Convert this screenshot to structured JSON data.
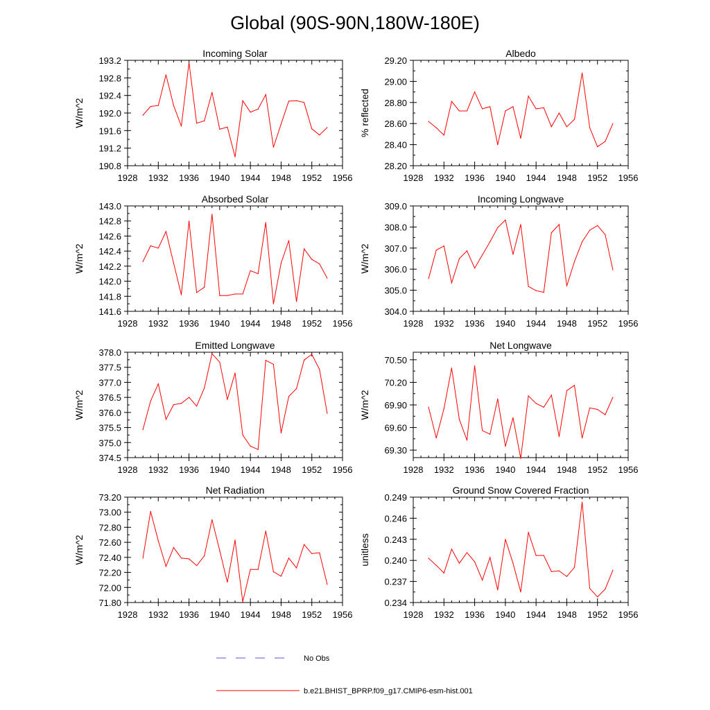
{
  "figure": {
    "title": "Global (90S-90N,180W-180E)",
    "legend": {
      "entries": [
        {
          "label": "No Obs",
          "color": "#5555cc",
          "style": "dashed"
        },
        {
          "label": "b.e21.BHIST_BPRP.f09_g17.CMIP6-esm-hist.001",
          "color": "#ff0000",
          "style": "solid"
        }
      ]
    }
  },
  "chart_data": [
    {
      "type": "line",
      "title": "Incoming Solar",
      "xlabel": "",
      "ylabel": "W/m^2",
      "xlim": [
        1928,
        1956
      ],
      "ylim": [
        190.8,
        193.2
      ],
      "xticks": [
        1928,
        1932,
        1936,
        1940,
        1944,
        1948,
        1952,
        1956
      ],
      "yticks": [
        "190.8",
        "191.2",
        "191.6",
        "192.0",
        "192.4",
        "192.8",
        "193.2"
      ],
      "color": "#ff0000",
      "series": [
        {
          "name": "b.e21.BHIST_BPRP.f09_g17.CMIP6-esm-hist.001",
          "x": [
            1930,
            1931,
            1932,
            1933,
            1934,
            1935,
            1936,
            1937,
            1938,
            1939,
            1940,
            1941,
            1942,
            1943,
            1944,
            1945,
            1946,
            1947,
            1948,
            1949,
            1950,
            1951,
            1952,
            1953,
            1954
          ],
          "values": [
            191.95,
            192.15,
            192.17,
            192.87,
            192.17,
            191.7,
            193.15,
            191.77,
            191.82,
            192.47,
            191.63,
            191.68,
            191.0,
            192.28,
            192.02,
            192.09,
            192.42,
            191.22,
            191.75,
            192.27,
            192.28,
            192.24,
            191.64,
            191.5,
            191.67
          ]
        }
      ]
    },
    {
      "type": "line",
      "title": "Albedo",
      "xlabel": "",
      "ylabel": "% reflected",
      "xlim": [
        1928,
        1956
      ],
      "ylim": [
        28.2,
        29.2
      ],
      "xticks": [
        1928,
        1932,
        1936,
        1940,
        1944,
        1948,
        1952,
        1956
      ],
      "yticks": [
        "28.20",
        "28.40",
        "28.60",
        "28.80",
        "29.00",
        "29.20"
      ],
      "color": "#ff0000",
      "series": [
        {
          "name": "b.e21.BHIST_BPRP.f09_g17.CMIP6-esm-hist.001",
          "x": [
            1930,
            1931,
            1932,
            1933,
            1934,
            1935,
            1936,
            1937,
            1938,
            1939,
            1940,
            1941,
            1942,
            1943,
            1944,
            1945,
            1946,
            1947,
            1948,
            1949,
            1950,
            1951,
            1952,
            1953,
            1954
          ],
          "values": [
            28.62,
            28.56,
            28.49,
            28.81,
            28.72,
            28.72,
            28.9,
            28.74,
            28.76,
            28.4,
            28.72,
            28.76,
            28.46,
            28.86,
            28.74,
            28.75,
            28.57,
            28.7,
            28.57,
            28.64,
            29.08,
            28.56,
            28.38,
            28.43,
            28.6
          ]
        }
      ]
    },
    {
      "type": "line",
      "title": "Absorbed Solar",
      "xlabel": "",
      "ylabel": "W/m^2",
      "xlim": [
        1928,
        1956
      ],
      "ylim": [
        141.6,
        143.0
      ],
      "xticks": [
        1928,
        1932,
        1936,
        1940,
        1944,
        1948,
        1952,
        1956
      ],
      "yticks": [
        "141.6",
        "141.8",
        "142.0",
        "142.2",
        "142.4",
        "142.6",
        "142.8",
        "143.0"
      ],
      "color": "#ff0000",
      "series": [
        {
          "name": "b.e21.BHIST_BPRP.f09_g17.CMIP6-esm-hist.001",
          "x": [
            1930,
            1931,
            1932,
            1933,
            1934,
            1935,
            1936,
            1937,
            1938,
            1939,
            1940,
            1941,
            1942,
            1943,
            1944,
            1945,
            1946,
            1947,
            1948,
            1949,
            1950,
            1951,
            1952,
            1953,
            1954
          ],
          "values": [
            142.26,
            142.47,
            142.44,
            142.66,
            142.24,
            141.82,
            142.8,
            141.85,
            141.92,
            142.89,
            141.81,
            141.81,
            141.83,
            141.83,
            142.14,
            142.1,
            142.78,
            141.7,
            142.24,
            142.54,
            141.73,
            142.43,
            142.29,
            142.23,
            142.04
          ]
        }
      ]
    },
    {
      "type": "line",
      "title": "Incoming Longwave",
      "xlabel": "",
      "ylabel": "W/m^2",
      "xlim": [
        1928,
        1956
      ],
      "ylim": [
        304.0,
        309.0
      ],
      "xticks": [
        1928,
        1932,
        1936,
        1940,
        1944,
        1948,
        1952,
        1956
      ],
      "yticks": [
        "304.0",
        "305.0",
        "306.0",
        "307.0",
        "308.0",
        "309.0"
      ],
      "color": "#ff0000",
      "series": [
        {
          "name": "b.e21.BHIST_BPRP.f09_g17.CMIP6-esm-hist.001",
          "x": [
            1930,
            1931,
            1932,
            1933,
            1934,
            1935,
            1936,
            1937,
            1938,
            1939,
            1940,
            1941,
            1942,
            1943,
            1944,
            1945,
            1946,
            1947,
            1948,
            1949,
            1950,
            1951,
            1952,
            1953,
            1954
          ],
          "values": [
            305.55,
            306.9,
            307.1,
            305.35,
            306.5,
            306.87,
            306.05,
            306.67,
            307.3,
            307.97,
            308.33,
            306.7,
            308.12,
            305.18,
            304.98,
            304.9,
            307.73,
            308.12,
            305.2,
            306.36,
            307.3,
            307.85,
            308.07,
            307.64,
            305.97
          ]
        }
      ]
    },
    {
      "type": "line",
      "title": "Emitted Longwave",
      "xlabel": "",
      "ylabel": "W/m^2",
      "xlim": [
        1928,
        1956
      ],
      "ylim": [
        374.5,
        378.0
      ],
      "xticks": [
        1928,
        1932,
        1936,
        1940,
        1944,
        1948,
        1952,
        1956
      ],
      "yticks": [
        "374.5",
        "375.0",
        "375.5",
        "376.0",
        "376.5",
        "377.0",
        "377.5",
        "378.0"
      ],
      "color": "#ff0000",
      "series": [
        {
          "name": "b.e21.BHIST_BPRP.f09_g17.CMIP6-esm-hist.001",
          "x": [
            1930,
            1931,
            1932,
            1933,
            1934,
            1935,
            1936,
            1937,
            1938,
            1939,
            1940,
            1941,
            1942,
            1943,
            1944,
            1945,
            1946,
            1947,
            1948,
            1949,
            1950,
            1951,
            1952,
            1953,
            1954
          ],
          "values": [
            375.43,
            376.38,
            376.95,
            375.77,
            376.26,
            376.3,
            376.5,
            376.21,
            376.81,
            377.95,
            377.67,
            376.43,
            377.31,
            375.25,
            374.88,
            374.77,
            377.73,
            377.6,
            375.32,
            376.53,
            376.79,
            377.74,
            377.93,
            377.43,
            375.97
          ]
        }
      ]
    },
    {
      "type": "line",
      "title": "Net Longwave",
      "xlabel": "",
      "ylabel": "W/m^2",
      "xlim": [
        1928,
        1956
      ],
      "ylim": [
        69.2,
        70.6
      ],
      "xticks": [
        1928,
        1932,
        1936,
        1940,
        1944,
        1948,
        1952,
        1956
      ],
      "yticks": [
        "69.30",
        "69.60",
        "69.90",
        "70.20",
        "70.50"
      ],
      "color": "#ff0000",
      "series": [
        {
          "name": "b.e21.BHIST_BPRP.f09_g17.CMIP6-esm-hist.001",
          "x": [
            1930,
            1931,
            1932,
            1933,
            1934,
            1935,
            1936,
            1937,
            1938,
            1939,
            1940,
            1941,
            1942,
            1943,
            1944,
            1945,
            1946,
            1947,
            1948,
            1949,
            1950,
            1951,
            1952,
            1953,
            1954
          ],
          "values": [
            69.87,
            69.46,
            69.85,
            70.39,
            69.71,
            69.43,
            70.42,
            69.56,
            69.51,
            69.98,
            69.35,
            69.73,
            69.19,
            70.02,
            69.92,
            69.87,
            70.03,
            69.48,
            70.09,
            70.16,
            69.46,
            69.86,
            69.84,
            69.77,
            70.0
          ]
        }
      ]
    },
    {
      "type": "line",
      "title": "Net Radiation",
      "xlabel": "",
      "ylabel": "W/m^2",
      "xlim": [
        1928,
        1956
      ],
      "ylim": [
        71.8,
        73.2
      ],
      "xticks": [
        1928,
        1932,
        1936,
        1940,
        1944,
        1948,
        1952,
        1956
      ],
      "yticks": [
        "71.80",
        "72.00",
        "72.20",
        "72.40",
        "72.60",
        "72.80",
        "73.00",
        "73.20"
      ],
      "color": "#ff0000",
      "series": [
        {
          "name": "b.e21.BHIST_BPRP.f09_g17.CMIP6-esm-hist.001",
          "x": [
            1930,
            1931,
            1932,
            1933,
            1934,
            1935,
            1936,
            1937,
            1938,
            1939,
            1940,
            1941,
            1942,
            1943,
            1944,
            1945,
            1946,
            1947,
            1948,
            1949,
            1950,
            1951,
            1952,
            1953,
            1954
          ],
          "values": [
            72.39,
            73.01,
            72.62,
            72.28,
            72.53,
            72.39,
            72.38,
            72.29,
            72.42,
            72.9,
            72.49,
            72.07,
            72.63,
            71.81,
            72.24,
            72.24,
            72.75,
            72.21,
            72.15,
            72.39,
            72.26,
            72.57,
            72.45,
            72.46,
            72.04
          ]
        }
      ]
    },
    {
      "type": "line",
      "title": "Ground Snow Covered Fraction",
      "xlabel": "",
      "ylabel": "unitless",
      "xlim": [
        1928,
        1956
      ],
      "ylim": [
        0.234,
        0.249
      ],
      "xticks": [
        1928,
        1932,
        1936,
        1940,
        1944,
        1948,
        1952,
        1956
      ],
      "yticks": [
        "0.234",
        "0.237",
        "0.240",
        "0.243",
        "0.246",
        "0.249"
      ],
      "color": "#ff0000",
      "series": [
        {
          "name": "b.e21.BHIST_BPRP.f09_g17.CMIP6-esm-hist.001",
          "x": [
            1930,
            1931,
            1932,
            1933,
            1934,
            1935,
            1936,
            1937,
            1938,
            1939,
            1940,
            1941,
            1942,
            1943,
            1944,
            1945,
            1946,
            1947,
            1948,
            1949,
            1950,
            1951,
            1952,
            1953,
            1954
          ],
          "values": [
            0.2403,
            0.2393,
            0.2382,
            0.2416,
            0.2396,
            0.2411,
            0.2398,
            0.2372,
            0.2404,
            0.2358,
            0.243,
            0.2396,
            0.2355,
            0.244,
            0.2407,
            0.2407,
            0.2384,
            0.2385,
            0.2377,
            0.239,
            0.2483,
            0.236,
            0.2348,
            0.2359,
            0.2386
          ]
        }
      ]
    }
  ]
}
